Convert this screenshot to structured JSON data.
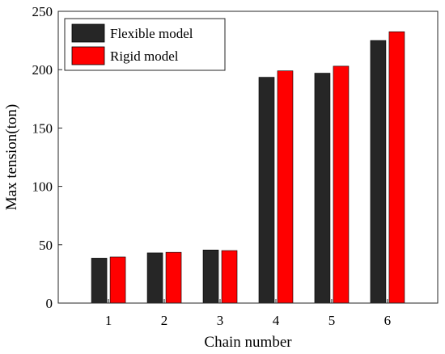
{
  "chart_data": {
    "type": "bar",
    "title": "",
    "xlabel": "Chain number",
    "ylabel": "Max tension(ton)",
    "categories": [
      "1",
      "2",
      "3",
      "4",
      "5",
      "6"
    ],
    "series": [
      {
        "name": "Flexible model",
        "color": "#262626",
        "values": [
          38.5,
          43,
          45.5,
          193.5,
          197,
          225
        ]
      },
      {
        "name": "Rigid model",
        "color": "#ff0000",
        "values": [
          39.5,
          43.5,
          45,
          199,
          203,
          232.5
        ]
      }
    ],
    "ylim": [
      0,
      250
    ],
    "yticks": [
      0,
      50,
      100,
      150,
      200,
      250
    ],
    "grid": false,
    "legend_position": "top-left",
    "box": true
  }
}
